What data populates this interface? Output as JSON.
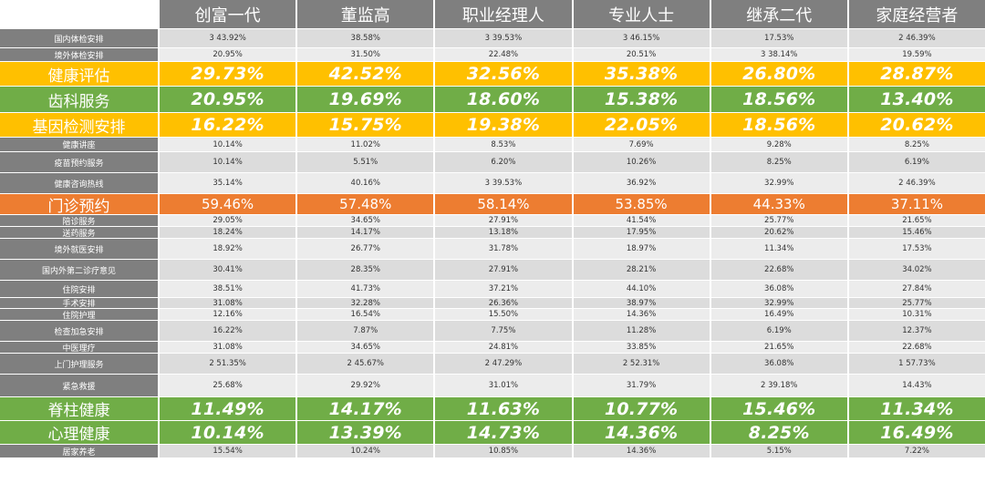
{
  "columns": [
    "创富一代",
    "董监高",
    "职业经理人",
    "专业人士",
    "继承二代",
    "家庭经营者"
  ],
  "rows": [
    {
      "label": "国内体检安排",
      "style": "small",
      "values": [
        "3 43.92%",
        "38.58%",
        "3 39.53%",
        "3 46.15%",
        "17.53%",
        "2 46.39%"
      ]
    },
    {
      "label": "境外体检安排",
      "style": "small",
      "values": [
        "20.95%",
        "31.50%",
        "22.48%",
        "20.51%",
        "3 38.14%",
        "19.59%"
      ]
    },
    {
      "label": "健康评估",
      "style": "big",
      "color": "yellow",
      "values": [
        "29.73%",
        "42.52%",
        "32.56%",
        "35.38%",
        "26.80%",
        "28.87%"
      ]
    },
    {
      "label": "齿科服务",
      "style": "big",
      "color": "green",
      "values": [
        "20.95%",
        "19.69%",
        "18.60%",
        "15.38%",
        "18.56%",
        "13.40%"
      ]
    },
    {
      "label": "基因检测安排",
      "style": "big",
      "color": "yellow",
      "values": [
        "16.22%",
        "15.75%",
        "19.38%",
        "22.05%",
        "18.56%",
        "20.62%"
      ]
    },
    {
      "label": "健康讲座",
      "style": "small",
      "values": [
        "10.14%",
        "11.02%",
        "8.53%",
        "7.69%",
        "9.28%",
        "8.25%"
      ]
    },
    {
      "label": "疫苗预约服务",
      "style": "small",
      "values": [
        "10.14%",
        "5.51%",
        "6.20%",
        "10.26%",
        "8.25%",
        "6.19%"
      ]
    },
    {
      "label": "健康咨询热线",
      "style": "small",
      "values": [
        "35.14%",
        "40.16%",
        "3 39.53%",
        "36.92%",
        "32.99%",
        "2 46.39%"
      ]
    },
    {
      "label": "门诊预约",
      "style": "mid",
      "color": "orange",
      "values": [
        "59.46%",
        "57.48%",
        "58.14%",
        "53.85%",
        "44.33%",
        "37.11%"
      ]
    },
    {
      "label": "陪诊服务",
      "style": "small",
      "values": [
        "29.05%",
        "34.65%",
        "27.91%",
        "41.54%",
        "25.77%",
        "21.65%"
      ]
    },
    {
      "label": "送药服务",
      "style": "small",
      "values": [
        "18.24%",
        "14.17%",
        "13.18%",
        "17.95%",
        "20.62%",
        "15.46%"
      ]
    },
    {
      "label": "境外就医安排",
      "style": "small",
      "values": [
        "18.92%",
        "26.77%",
        "31.78%",
        "18.97%",
        "11.34%",
        "17.53%"
      ]
    },
    {
      "label": "国内外第二诊疗意见",
      "style": "small",
      "values": [
        "30.41%",
        "28.35%",
        "27.91%",
        "28.21%",
        "22.68%",
        "34.02%"
      ]
    },
    {
      "label": "住院安排",
      "style": "small",
      "values": [
        "38.51%",
        "41.73%",
        "37.21%",
        "44.10%",
        "36.08%",
        "27.84%"
      ]
    },
    {
      "label": "手术安排",
      "style": "small",
      "values": [
        "31.08%",
        "32.28%",
        "26.36%",
        "38.97%",
        "32.99%",
        "25.77%"
      ]
    },
    {
      "label": "住院护理",
      "style": "small",
      "values": [
        "12.16%",
        "16.54%",
        "15.50%",
        "14.36%",
        "16.49%",
        "10.31%"
      ]
    },
    {
      "label": "检查加急安排",
      "style": "small",
      "values": [
        "16.22%",
        "7.87%",
        "7.75%",
        "11.28%",
        "6.19%",
        "12.37%"
      ]
    },
    {
      "label": "中医理疗",
      "style": "small",
      "values": [
        "31.08%",
        "34.65%",
        "24.81%",
        "33.85%",
        "21.65%",
        "22.68%"
      ]
    },
    {
      "label": "上门护理服务",
      "style": "small",
      "values": [
        "2 51.35%",
        "2 45.67%",
        "2 47.29%",
        "2 52.31%",
        "36.08%",
        "1 57.73%"
      ]
    },
    {
      "label": "紧急救援",
      "style": "small",
      "values": [
        "25.68%",
        "29.92%",
        "31.01%",
        "31.79%",
        "2 39.18%",
        "14.43%"
      ]
    },
    {
      "label": "脊柱健康",
      "style": "big",
      "color": "green",
      "values": [
        "11.49%",
        "14.17%",
        "11.63%",
        "10.77%",
        "15.46%",
        "11.34%"
      ]
    },
    {
      "label": "心理健康",
      "style": "big",
      "color": "green",
      "values": [
        "10.14%",
        "13.39%",
        "14.73%",
        "14.36%",
        "8.25%",
        "16.49%"
      ]
    },
    {
      "label": "居家养老",
      "style": "small",
      "values": [
        "15.54%",
        "10.24%",
        "10.85%",
        "14.36%",
        "5.15%",
        "7.22%"
      ]
    }
  ]
}
